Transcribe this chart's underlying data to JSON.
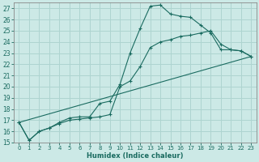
{
  "background_color": "#cce9e6",
  "grid_color": "#aed4d0",
  "line_color": "#1a6b60",
  "xlabel": "Humidex (Indice chaleur)",
  "xlim": [
    -0.5,
    23.5
  ],
  "ylim": [
    15,
    27.5
  ],
  "yticks": [
    15,
    16,
    17,
    18,
    19,
    20,
    21,
    22,
    23,
    24,
    25,
    26,
    27
  ],
  "xticks": [
    0,
    1,
    2,
    3,
    4,
    5,
    6,
    7,
    8,
    9,
    10,
    11,
    12,
    13,
    14,
    15,
    16,
    17,
    18,
    19,
    20,
    21,
    22,
    23
  ],
  "curve1_x": [
    0,
    1,
    2,
    3,
    4,
    5,
    6,
    7,
    8,
    9,
    10,
    11,
    12,
    13,
    14,
    15,
    16,
    17,
    18,
    19,
    20,
    21,
    22,
    23
  ],
  "curve1_y": [
    16.8,
    15.2,
    16.0,
    16.3,
    16.8,
    17.2,
    17.3,
    17.3,
    18.5,
    18.7,
    20.2,
    23.0,
    25.2,
    27.2,
    27.3,
    26.5,
    26.3,
    26.2,
    25.5,
    24.8,
    23.3,
    23.3,
    23.2,
    22.7
  ],
  "curve2_x": [
    0,
    1,
    2,
    3,
    4,
    5,
    6,
    7,
    8,
    9,
    10,
    11,
    12,
    13,
    14,
    15,
    16,
    17,
    18,
    19,
    20,
    21,
    22,
    23
  ],
  "curve2_y": [
    16.8,
    15.2,
    16.0,
    16.3,
    16.7,
    17.0,
    17.1,
    17.2,
    17.3,
    17.5,
    20.0,
    20.5,
    21.8,
    23.5,
    24.0,
    24.2,
    24.5,
    24.6,
    24.8,
    25.0,
    23.8,
    23.3,
    23.2,
    22.7
  ],
  "line3_x": [
    0,
    23
  ],
  "line3_y": [
    16.8,
    22.7
  ]
}
